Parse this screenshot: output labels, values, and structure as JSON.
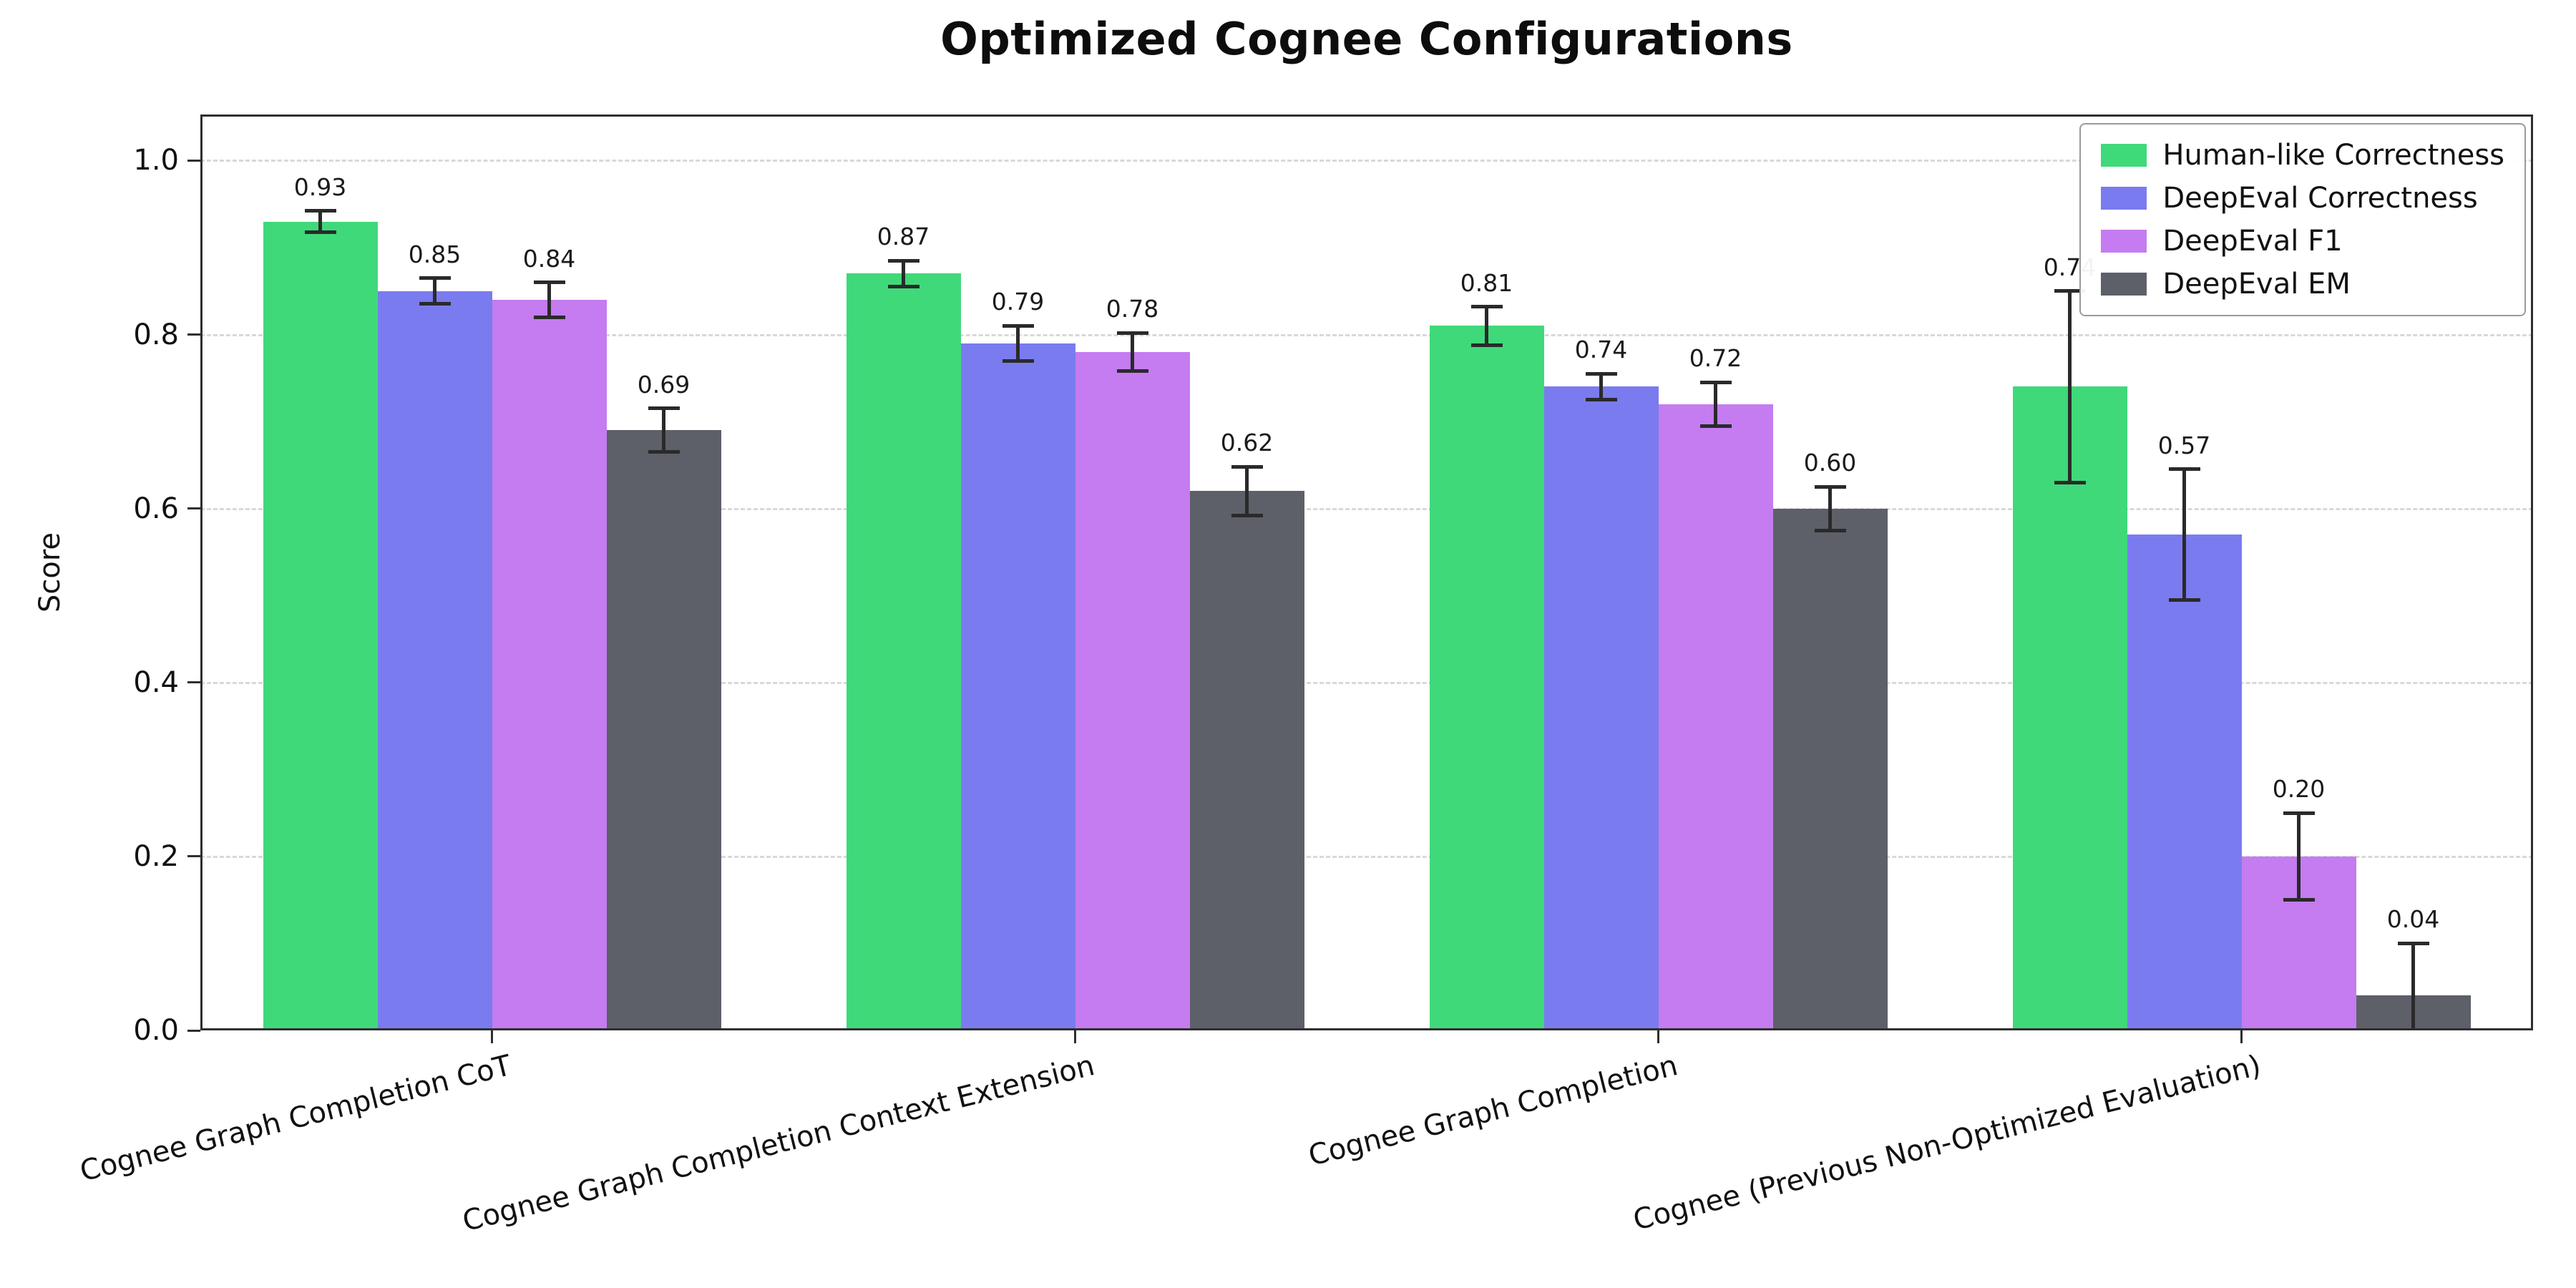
{
  "title": "Optimized Cognee Configurations",
  "chart_data": {
    "type": "bar",
    "title": "Optimized Cognee Configurations",
    "xlabel": "",
    "ylabel": "Score",
    "ylim": [
      0,
      1.05
    ],
    "yticks": [
      0.0,
      0.2,
      0.4,
      0.6,
      0.8,
      1.0
    ],
    "grid": true,
    "grid_style": "dashed",
    "legend_position": "upper right",
    "bar_labels": true,
    "error_bars": true,
    "error_bar_color": "#2a2a2a",
    "categories": [
      "Cognee Graph Completion CoT",
      "Cognee Graph Completion Context Extension",
      "Cognee Graph Completion",
      "Cognee (Previous Non-Optimized Evaluation)"
    ],
    "series": [
      {
        "name": "Human-like Correctness",
        "color": "#3fd97a",
        "values": [
          0.93,
          0.87,
          0.81,
          0.74
        ],
        "errors": [
          0.012,
          0.015,
          0.022,
          0.11
        ]
      },
      {
        "name": "DeepEval Correctness",
        "color": "#7a7bef",
        "values": [
          0.85,
          0.79,
          0.74,
          0.57
        ],
        "errors": [
          0.015,
          0.02,
          0.015,
          0.075
        ]
      },
      {
        "name": "DeepEval F1",
        "color": "#c47cf0",
        "values": [
          0.84,
          0.78,
          0.72,
          0.2
        ],
        "errors": [
          0.02,
          0.022,
          0.025,
          0.05
        ]
      },
      {
        "name": "DeepEval EM",
        "color": "#5d6068",
        "values": [
          0.69,
          0.62,
          0.6,
          0.04
        ],
        "errors": [
          0.025,
          0.028,
          0.025,
          0.06
        ]
      }
    ]
  }
}
